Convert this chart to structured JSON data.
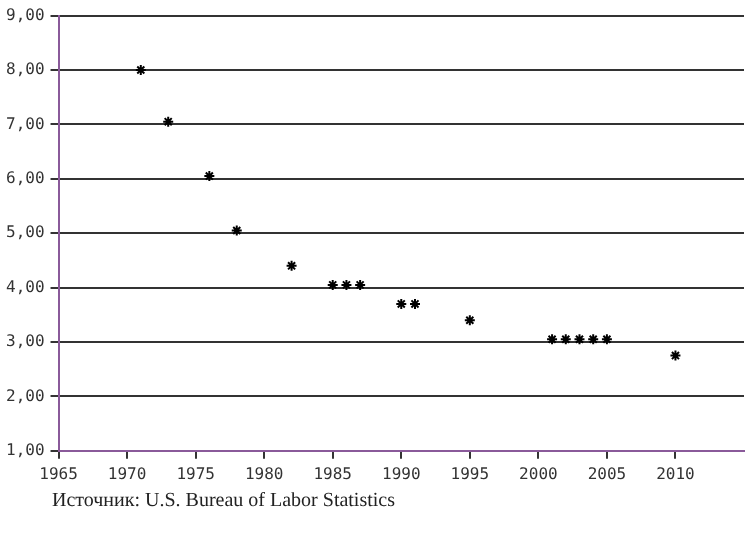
{
  "chart_data": {
    "type": "scatter",
    "annotations": [
      "Источник: U.S. Bureau of Labor Statistics"
    ],
    "series": [
      {
        "color": "#000000",
        "x": [
          1971,
          1973,
          1976,
          1978,
          1982,
          1985,
          1986,
          1987,
          1990,
          1991,
          1995,
          2001,
          2002,
          2003,
          2004,
          2005,
          2010
        ],
        "values": [
          8.0,
          7.05,
          6.05,
          5.05,
          4.4,
          4.05,
          4.05,
          4.05,
          3.7,
          3.7,
          3.4,
          3.05,
          3.05,
          3.05,
          3.05,
          3.05,
          2.75
        ]
      }
    ],
    "xlim": [
      1965,
      2015
    ],
    "xticks": [
      1965,
      1970,
      1975,
      1980,
      1985,
      1990,
      1995,
      2000,
      2005,
      2010
    ],
    "ylim": [
      1,
      9
    ],
    "yticks": [
      {
        "value": 1,
        "label": "1,00"
      },
      {
        "value": 2,
        "label": "2,00"
      },
      {
        "value": 3,
        "label": "3,00"
      },
      {
        "value": 4,
        "label": "4,00"
      },
      {
        "value": 5,
        "label": "5,00"
      },
      {
        "value": 6,
        "label": "6,00"
      },
      {
        "value": 7,
        "label": "7,00"
      },
      {
        "value": 8,
        "label": "8,00"
      },
      {
        "value": 9,
        "label": "9,00"
      }
    ],
    "grid": "y",
    "marker": "cross",
    "legend": false
  }
}
